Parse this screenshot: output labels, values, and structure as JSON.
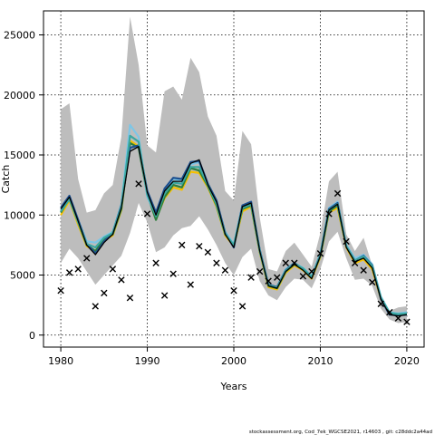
{
  "chart_data": {
    "type": "line",
    "title": "",
    "xlabel": "Years",
    "ylabel": "Catch",
    "xlim": [
      1978,
      2022
    ],
    "ylim": [
      -1000,
      27000
    ],
    "x_ticks": [
      1980,
      1990,
      2000,
      2010,
      2020
    ],
    "y_ticks": [
      0,
      5000,
      10000,
      15000,
      20000,
      25000
    ],
    "grid": "dotted",
    "footer": "stockassessment.org, Cod_7ek_WGCSE2021, r14603 , git: c28ddc2a44ad",
    "years": [
      1980,
      1981,
      1982,
      1983,
      1984,
      1985,
      1986,
      1987,
      1988,
      1989,
      1990,
      1991,
      1992,
      1993,
      1994,
      1995,
      1996,
      1997,
      1998,
      1999,
      2000,
      2001,
      2002,
      2003,
      2004,
      2005,
      2006,
      2007,
      2008,
      2009,
      2010,
      2011,
      2012,
      2013,
      2014,
      2015,
      2016,
      2017,
      2018,
      2019,
      2020
    ],
    "band_upper": [
      18800,
      19300,
      13000,
      10200,
      10400,
      11800,
      12500,
      16500,
      26500,
      22500,
      15800,
      15200,
      20300,
      20700,
      19600,
      23100,
      21900,
      18200,
      16600,
      12000,
      11200,
      17000,
      15900,
      9800,
      5500,
      5300,
      7000,
      7700,
      6700,
      5700,
      8500,
      12800,
      13600,
      8400,
      7000,
      8100,
      5800,
      3000,
      2000,
      2300,
      2400
    ],
    "band_lower": [
      6000,
      7200,
      6400,
      5300,
      4200,
      5000,
      5800,
      6600,
      8500,
      11000,
      9400,
      6900,
      7300,
      8300,
      8900,
      9100,
      9900,
      8800,
      7500,
      6000,
      5000,
      6500,
      7200,
      4500,
      3300,
      2900,
      4000,
      4700,
      4600,
      3900,
      5500,
      7800,
      8600,
      6400,
      4600,
      4700,
      4100,
      2200,
      1300,
      1000,
      1100
    ],
    "series": [
      {
        "color": "#f5c000",
        "values": [
          10000,
          11200,
          9200,
          7400,
          7000,
          7900,
          8300,
          10400,
          16200,
          15700,
          11800,
          9700,
          11400,
          12300,
          12100,
          13600,
          13500,
          12300,
          10700,
          8300,
          7400,
          10300,
          10700,
          6900,
          4000,
          3800,
          5200,
          5800,
          5400,
          4700,
          6500,
          10200,
          10600,
          7300,
          6000,
          6300,
          5500,
          3000,
          1800,
          1700,
          1800
        ]
      },
      {
        "color": "#2d7f3c",
        "values": [
          10200,
          11400,
          9400,
          7500,
          7000,
          8000,
          8400,
          10500,
          16000,
          15600,
          11700,
          9600,
          11500,
          12500,
          12300,
          13900,
          13700,
          12400,
          10800,
          8400,
          7500,
          10500,
          10800,
          7000,
          4100,
          3900,
          5300,
          5900,
          5500,
          4800,
          6600,
          10300,
          10800,
          7400,
          6100,
          6500,
          5700,
          3100,
          1850,
          1750,
          1850
        ]
      },
      {
        "color": "#7ec6e6",
        "values": [
          10400,
          11500,
          9600,
          7800,
          7700,
          8200,
          8600,
          10900,
          17500,
          16500,
          11500,
          10000,
          12000,
          13000,
          12800,
          14200,
          14400,
          12600,
          11000,
          8600,
          7600,
          10800,
          11000,
          7100,
          4200,
          4000,
          5500,
          6000,
          5600,
          4900,
          6800,
          10600,
          11100,
          7500,
          6400,
          6700,
          5900,
          3200,
          1900,
          1800,
          1900
        ]
      },
      {
        "color": "#1c4f8f",
        "values": [
          10600,
          11600,
          9600,
          7600,
          6800,
          7800,
          8500,
          10800,
          15600,
          15800,
          12000,
          10200,
          12200,
          13100,
          13000,
          14400,
          14500,
          12600,
          11200,
          8500,
          7300,
          10800,
          11100,
          7100,
          4200,
          4000,
          5400,
          6000,
          5500,
          4800,
          6700,
          10500,
          11000,
          7400,
          6200,
          6600,
          5800,
          3000,
          1700,
          1650,
          1700
        ]
      },
      {
        "color": "#3aa7a0",
        "values": [
          10300,
          11300,
          9400,
          7600,
          7300,
          8100,
          8500,
          10700,
          16600,
          16100,
          11700,
          9900,
          11800,
          12700,
          12600,
          14000,
          14000,
          12500,
          10900,
          8450,
          7500,
          10600,
          10900,
          7000,
          4150,
          3950,
          5350,
          5950,
          5550,
          4850,
          6650,
          10400,
          10900,
          7400,
          6200,
          6550,
          5750,
          3100,
          1850,
          1750,
          1800
        ]
      },
      {
        "color": "#000000",
        "values": [
          10500,
          11500,
          9500,
          7500,
          6700,
          7700,
          8400,
          10600,
          15300,
          15700,
          11900,
          10000,
          12000,
          12800,
          12800,
          14300,
          14600,
          12500,
          11100,
          8400,
          7300,
          10700,
          11000,
          7000,
          4100,
          3900,
          5300,
          5900,
          5400,
          4700,
          6600,
          10400,
          10900,
          7300,
          6100,
          6400,
          5600,
          3000,
          1700,
          1600,
          1700
        ]
      }
    ],
    "observed": {
      "marker": "x",
      "points": [
        [
          1980,
          3700
        ],
        [
          1981,
          5200
        ],
        [
          1982,
          5500
        ],
        [
          1983,
          6400
        ],
        [
          1984,
          2400
        ],
        [
          1985,
          3500
        ],
        [
          1986,
          5500
        ],
        [
          1987,
          4600
        ],
        [
          1988,
          3100
        ],
        [
          1989,
          12600
        ],
        [
          1990,
          10100
        ],
        [
          1991,
          6000
        ],
        [
          1992,
          3300
        ],
        [
          1993,
          5100
        ],
        [
          1994,
          7500
        ],
        [
          1995,
          4200
        ],
        [
          1996,
          7400
        ],
        [
          1997,
          6900
        ],
        [
          1998,
          6000
        ],
        [
          1999,
          5400
        ],
        [
          2000,
          3700
        ],
        [
          2001,
          2400
        ],
        [
          2002,
          4800
        ],
        [
          2003,
          5300
        ],
        [
          2004,
          4500
        ],
        [
          2005,
          4800
        ],
        [
          2006,
          6000
        ],
        [
          2007,
          6000
        ],
        [
          2008,
          4900
        ],
        [
          2009,
          5300
        ],
        [
          2010,
          6800
        ],
        [
          2011,
          10100
        ],
        [
          2012,
          11800
        ],
        [
          2013,
          7800
        ],
        [
          2014,
          6000
        ],
        [
          2015,
          5400
        ],
        [
          2016,
          4400
        ],
        [
          2017,
          2600
        ],
        [
          2018,
          1900
        ],
        [
          2019,
          1400
        ],
        [
          2020,
          1100
        ]
      ]
    }
  }
}
